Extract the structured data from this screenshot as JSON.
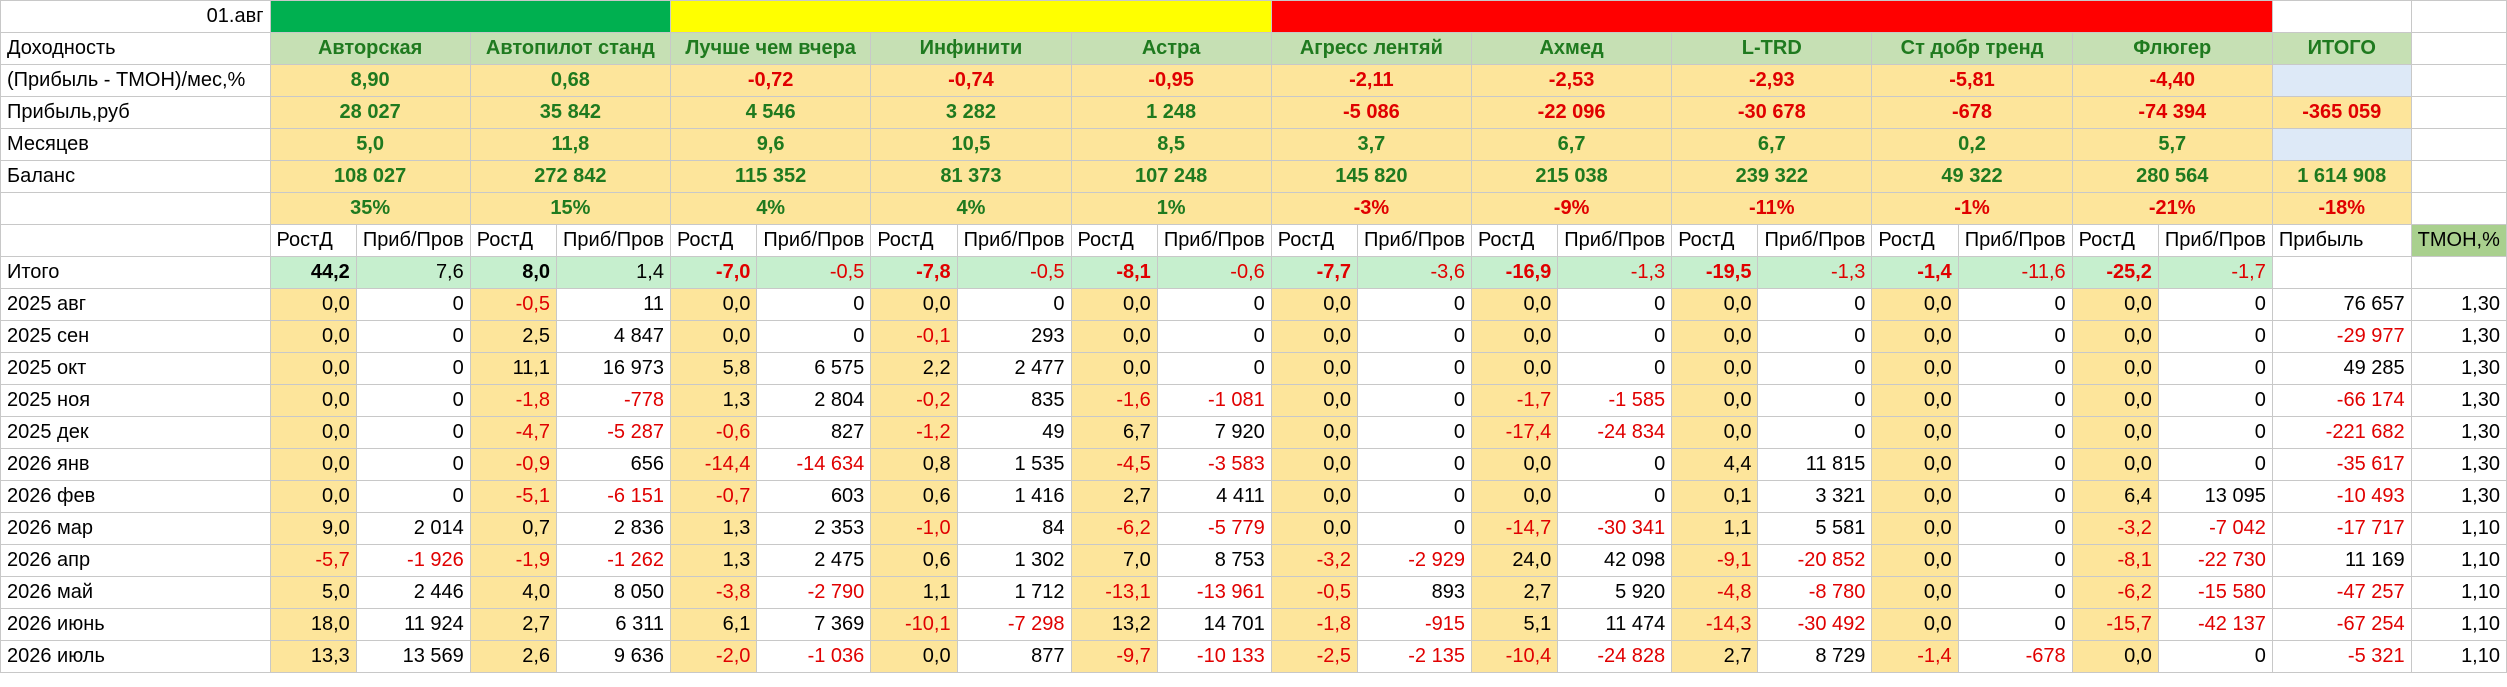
{
  "header": {
    "date": "01.авг",
    "totals_label": "ИТОГО"
  },
  "colors": {
    "good_bar": "#00b050",
    "mid_bar": "#ffff00",
    "bad_bar": "#ff0000",
    "positive_text": "#1f7a1f",
    "negative_text": "#e00000"
  },
  "row_labels": {
    "dohodnost": "Доходность",
    "profit_pct": "(Прибыль - ТМОН)/мес,%",
    "profit_rub": "Прибыль,руб",
    "months": "Месяцев",
    "balance": "Баланс",
    "itogo": "Итого"
  },
  "strategies": [
    {
      "name": "Авторская",
      "group": "green",
      "profit_pct": "8,90",
      "profit_rub": "28 027",
      "months": "5,0",
      "balance": "108 027",
      "ratio": "35%",
      "itogo_growth": "44,2",
      "itogo_profit": "7,6"
    },
    {
      "name": "Автопилот станд",
      "group": "green",
      "profit_pct": "0,68",
      "profit_rub": "35 842",
      "months": "11,8",
      "balance": "272 842",
      "ratio": "15%",
      "itogo_growth": "8,0",
      "itogo_profit": "1,4"
    },
    {
      "name": "Лучше чем вчера",
      "group": "yellow",
      "profit_pct": "-0,72",
      "profit_rub": "4 546",
      "months": "9,6",
      "balance": "115 352",
      "ratio": "4%",
      "itogo_growth": "-7,0",
      "itogo_profit": "-0,5"
    },
    {
      "name": "Инфинити",
      "group": "yellow",
      "profit_pct": "-0,74",
      "profit_rub": "3 282",
      "months": "10,5",
      "balance": "81 373",
      "ratio": "4%",
      "itogo_growth": "-7,8",
      "itogo_profit": "-0,5"
    },
    {
      "name": "Астра",
      "group": "yellow",
      "profit_pct": "-0,95",
      "profit_rub": "1 248",
      "months": "8,5",
      "balance": "107 248",
      "ratio": "1%",
      "itogo_growth": "-8,1",
      "itogo_profit": "-0,6"
    },
    {
      "name": "Агресс лентяй",
      "group": "red",
      "profit_pct": "-2,11",
      "profit_rub": "-5 086",
      "months": "3,7",
      "balance": "145 820",
      "ratio": "-3%",
      "itogo_growth": "-7,7",
      "itogo_profit": "-3,6"
    },
    {
      "name": "Ахмед",
      "group": "red",
      "profit_pct": "-2,53",
      "profit_rub": "-22 096",
      "months": "6,7",
      "balance": "215 038",
      "ratio": "-9%",
      "itogo_growth": "-16,9",
      "itogo_profit": "-1,3"
    },
    {
      "name": "L-TRD",
      "group": "red",
      "profit_pct": "-2,93",
      "profit_rub": "-30 678",
      "months": "6,7",
      "balance": "239 322",
      "ratio": "-11%",
      "itogo_growth": "-19,5",
      "itogo_profit": "-1,3"
    },
    {
      "name": "Ст добр тренд",
      "group": "red",
      "profit_pct": "-5,81",
      "profit_rub": "-678",
      "months": "0,2",
      "balance": "49 322",
      "ratio": "-1%",
      "itogo_growth": "-1,4",
      "itogo_profit": "-11,6"
    },
    {
      "name": "Флюгер",
      "group": "red",
      "profit_pct": "-4,40",
      "profit_rub": "-74 394",
      "months": "5,7",
      "balance": "280 564",
      "ratio": "-21%",
      "itogo_growth": "-25,2",
      "itogo_profit": "-1,7"
    }
  ],
  "totals": {
    "profit_pct": "",
    "profit_rub": "-365 059",
    "months": "",
    "balance": "1 614 908",
    "ratio": "-18%"
  },
  "sub_headers": {
    "growth": "РостД",
    "profit": "Приб/Пров",
    "total_profit": "Прибыль",
    "tmon": "ТМОН,%"
  },
  "months": [
    {
      "label": "2025 авг",
      "cells": [
        [
          "0,0",
          "0"
        ],
        [
          "-0,5",
          "11"
        ],
        [
          "0,0",
          "0"
        ],
        [
          "0,0",
          "0"
        ],
        [
          "0,0",
          "0"
        ],
        [
          "0,0",
          "0"
        ],
        [
          "0,0",
          "0"
        ],
        [
          "0,0",
          "0"
        ],
        [
          "0,0",
          "0"
        ],
        [
          "0,0",
          "0"
        ]
      ],
      "profit": "76 657",
      "tmon": "1,30"
    },
    {
      "label": "2025 сен",
      "cells": [
        [
          "0,0",
          "0"
        ],
        [
          "2,5",
          "4 847"
        ],
        [
          "0,0",
          "0"
        ],
        [
          "-0,1",
          "293"
        ],
        [
          "0,0",
          "0"
        ],
        [
          "0,0",
          "0"
        ],
        [
          "0,0",
          "0"
        ],
        [
          "0,0",
          "0"
        ],
        [
          "0,0",
          "0"
        ],
        [
          "0,0",
          "0"
        ]
      ],
      "profit": "-29 977",
      "tmon": "1,30"
    },
    {
      "label": "2025 окт",
      "cells": [
        [
          "0,0",
          "0"
        ],
        [
          "11,1",
          "16 973"
        ],
        [
          "5,8",
          "6 575"
        ],
        [
          "2,2",
          "2 477"
        ],
        [
          "0,0",
          "0"
        ],
        [
          "0,0",
          "0"
        ],
        [
          "0,0",
          "0"
        ],
        [
          "0,0",
          "0"
        ],
        [
          "0,0",
          "0"
        ],
        [
          "0,0",
          "0"
        ]
      ],
      "profit": "49 285",
      "tmon": "1,30"
    },
    {
      "label": "2025 ноя",
      "cells": [
        [
          "0,0",
          "0"
        ],
        [
          "-1,8",
          "-778"
        ],
        [
          "1,3",
          "2 804"
        ],
        [
          "-0,2",
          "835"
        ],
        [
          "-1,6",
          "-1 081"
        ],
        [
          "0,0",
          "0"
        ],
        [
          "-1,7",
          "-1 585"
        ],
        [
          "0,0",
          "0"
        ],
        [
          "0,0",
          "0"
        ],
        [
          "0,0",
          "0"
        ]
      ],
      "profit": "-66 174",
      "tmon": "1,30"
    },
    {
      "label": "2025 дек",
      "cells": [
        [
          "0,0",
          "0"
        ],
        [
          "-4,7",
          "-5 287"
        ],
        [
          "-0,6",
          "827"
        ],
        [
          "-1,2",
          "49"
        ],
        [
          "6,7",
          "7 920"
        ],
        [
          "0,0",
          "0"
        ],
        [
          "-17,4",
          "-24 834"
        ],
        [
          "0,0",
          "0"
        ],
        [
          "0,0",
          "0"
        ],
        [
          "0,0",
          "0"
        ]
      ],
      "profit": "-221 682",
      "tmon": "1,30"
    },
    {
      "label": "2026 янв",
      "cells": [
        [
          "0,0",
          "0"
        ],
        [
          "-0,9",
          "656"
        ],
        [
          "-14,4",
          "-14 634"
        ],
        [
          "0,8",
          "1 535"
        ],
        [
          "-4,5",
          "-3 583"
        ],
        [
          "0,0",
          "0"
        ],
        [
          "0,0",
          "0"
        ],
        [
          "4,4",
          "11 815"
        ],
        [
          "0,0",
          "0"
        ],
        [
          "0,0",
          "0"
        ]
      ],
      "profit": "-35 617",
      "tmon": "1,30"
    },
    {
      "label": "2026 фев",
      "cells": [
        [
          "0,0",
          "0"
        ],
        [
          "-5,1",
          "-6 151"
        ],
        [
          "-0,7",
          "603"
        ],
        [
          "0,6",
          "1 416"
        ],
        [
          "2,7",
          "4 411"
        ],
        [
          "0,0",
          "0"
        ],
        [
          "0,0",
          "0"
        ],
        [
          "0,1",
          "3 321"
        ],
        [
          "0,0",
          "0"
        ],
        [
          "6,4",
          "13 095"
        ]
      ],
      "profit": "-10 493",
      "tmon": "1,30"
    },
    {
      "label": "2026 мар",
      "cells": [
        [
          "9,0",
          "2 014"
        ],
        [
          "0,7",
          "2 836"
        ],
        [
          "1,3",
          "2 353"
        ],
        [
          "-1,0",
          "84"
        ],
        [
          "-6,2",
          "-5 779"
        ],
        [
          "0,0",
          "0"
        ],
        [
          "-14,7",
          "-30 341"
        ],
        [
          "1,1",
          "5 581"
        ],
        [
          "0,0",
          "0"
        ],
        [
          "-3,2",
          "-7 042"
        ]
      ],
      "profit": "-17 717",
      "tmon": "1,10"
    },
    {
      "label": "2026 апр",
      "cells": [
        [
          "-5,7",
          "-1 926"
        ],
        [
          "-1,9",
          "-1 262"
        ],
        [
          "1,3",
          "2 475"
        ],
        [
          "0,6",
          "1 302"
        ],
        [
          "7,0",
          "8 753"
        ],
        [
          "-3,2",
          "-2 929"
        ],
        [
          "24,0",
          "42 098"
        ],
        [
          "-9,1",
          "-20 852"
        ],
        [
          "0,0",
          "0"
        ],
        [
          "-8,1",
          "-22 730"
        ]
      ],
      "profit": "11 169",
      "tmon": "1,10"
    },
    {
      "label": "2026 май",
      "cells": [
        [
          "5,0",
          "2 446"
        ],
        [
          "4,0",
          "8 050"
        ],
        [
          "-3,8",
          "-2 790"
        ],
        [
          "1,1",
          "1 712"
        ],
        [
          "-13,1",
          "-13 961"
        ],
        [
          "-0,5",
          "893"
        ],
        [
          "2,7",
          "5 920"
        ],
        [
          "-4,8",
          "-8 780"
        ],
        [
          "0,0",
          "0"
        ],
        [
          "-6,2",
          "-15 580"
        ]
      ],
      "profit": "-47 257",
      "tmon": "1,10"
    },
    {
      "label": "2026 июнь",
      "cells": [
        [
          "18,0",
          "11 924"
        ],
        [
          "2,7",
          "6 311"
        ],
        [
          "6,1",
          "7 369"
        ],
        [
          "-10,1",
          "-7 298"
        ],
        [
          "13,2",
          "14 701"
        ],
        [
          "-1,8",
          "-915"
        ],
        [
          "5,1",
          "11 474"
        ],
        [
          "-14,3",
          "-30 492"
        ],
        [
          "0,0",
          "0"
        ],
        [
          "-15,7",
          "-42 137"
        ]
      ],
      "profit": "-67 254",
      "tmon": "1,10"
    },
    {
      "label": "2026 июль",
      "cells": [
        [
          "13,3",
          "13 569"
        ],
        [
          "2,6",
          "9 636"
        ],
        [
          "-2,0",
          "-1 036"
        ],
        [
          "0,0",
          "877"
        ],
        [
          "-9,7",
          "-10 133"
        ],
        [
          "-2,5",
          "-2 135"
        ],
        [
          "-10,4",
          "-24 828"
        ],
        [
          "2,7",
          "8 729"
        ],
        [
          "-1,4",
          "-678"
        ],
        [
          "0,0",
          "0"
        ]
      ],
      "profit": "-5 321",
      "tmon": "1,10"
    }
  ]
}
